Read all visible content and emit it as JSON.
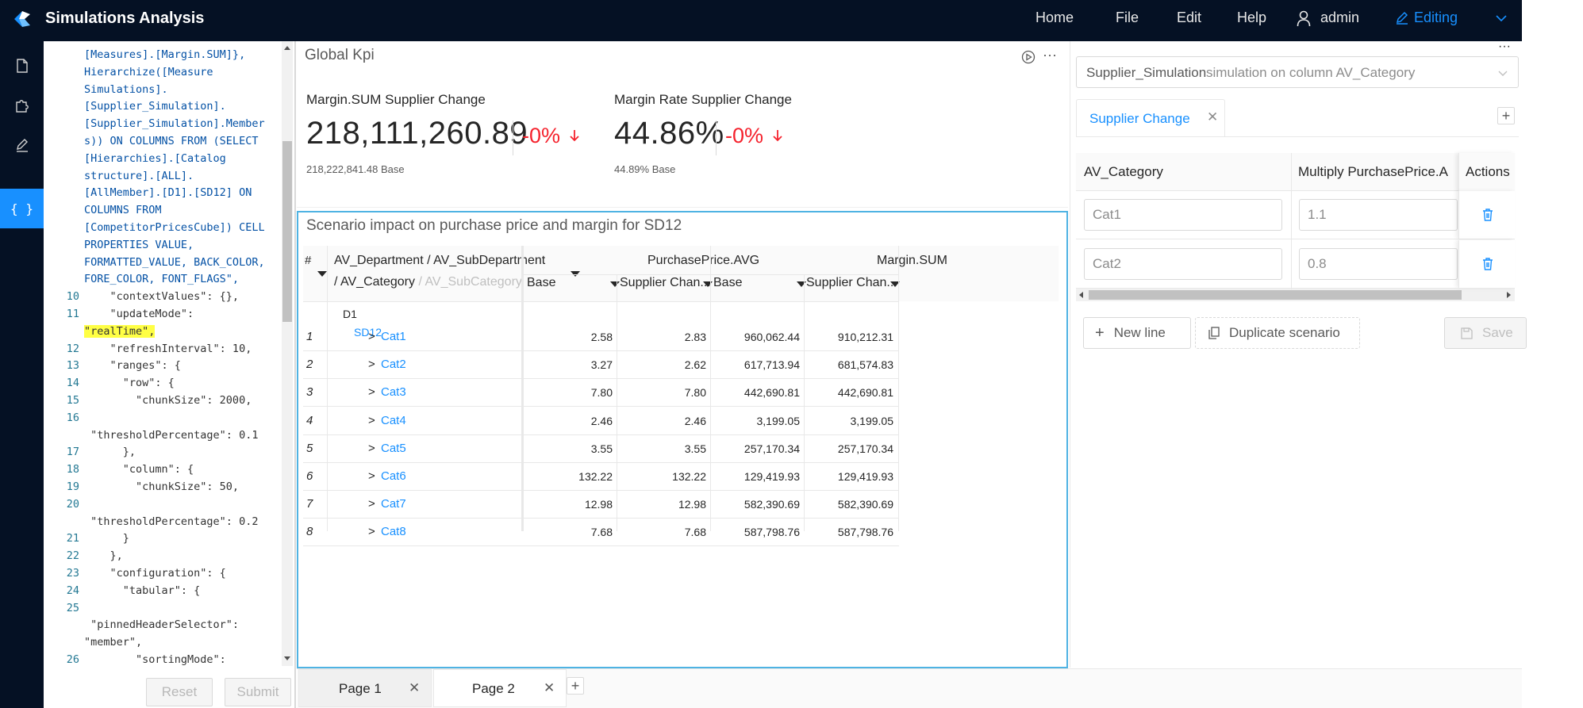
{
  "app": {
    "title": "Simulations Analysis"
  },
  "nav": {
    "home": "Home",
    "file": "File",
    "edit": "Edit",
    "help": "Help",
    "user": "admin",
    "editing": "Editing"
  },
  "iconbar": [
    "file-icon",
    "puzzle-icon",
    "pen-icon",
    "braces-icon"
  ],
  "code": {
    "lines": [
      {
        "n": "",
        "t": "[Measures].[Margin.SUM]},"
      },
      {
        "n": "",
        "t": "Hierarchize([Measure"
      },
      {
        "n": "",
        "t": "Simulations]."
      },
      {
        "n": "",
        "t": "[Supplier_Simulation]."
      },
      {
        "n": "",
        "t": "[Supplier_Simulation].Member"
      },
      {
        "n": "",
        "t": "s)) ON COLUMNS FROM (SELECT"
      },
      {
        "n": "",
        "t": "[Hierarchies].[Catalog"
      },
      {
        "n": "",
        "t": "structure].[ALL]."
      },
      {
        "n": "",
        "t": "[AllMember].[D1].[SD12] ON"
      },
      {
        "n": "",
        "t": "COLUMNS FROM"
      },
      {
        "n": "",
        "t": "[CompetitorPricesCube]) CELL"
      },
      {
        "n": "",
        "t": "PROPERTIES VALUE,"
      },
      {
        "n": "",
        "t": "FORMATTED_VALUE, BACK_COLOR,"
      },
      {
        "n": "",
        "t": "FORE_COLOR, FONT_FLAGS\","
      },
      {
        "n": "10",
        "t": "    \"contextValues\": {},"
      },
      {
        "n": "11",
        "t": "    \"updateMode\":"
      },
      {
        "n": "",
        "t": "\"realTime\","
      },
      {
        "n": "12",
        "t": "    \"refreshInterval\": 10,"
      },
      {
        "n": "13",
        "t": "    \"ranges\": {"
      },
      {
        "n": "14",
        "t": "      \"row\": {"
      },
      {
        "n": "15",
        "t": "        \"chunkSize\": 2000,"
      },
      {
        "n": "16",
        "t": ""
      },
      {
        "n": "",
        "t": " \"thresholdPercentage\": 0.1"
      },
      {
        "n": "17",
        "t": "      },"
      },
      {
        "n": "18",
        "t": "      \"column\": {"
      },
      {
        "n": "19",
        "t": "        \"chunkSize\": 50,"
      },
      {
        "n": "20",
        "t": ""
      },
      {
        "n": "",
        "t": " \"thresholdPercentage\": 0.2"
      },
      {
        "n": "21",
        "t": "      }"
      },
      {
        "n": "22",
        "t": "    },"
      },
      {
        "n": "23",
        "t": "    \"configuration\": {"
      },
      {
        "n": "24",
        "t": "      \"tabular\": {"
      },
      {
        "n": "25",
        "t": ""
      },
      {
        "n": "",
        "t": " \"pinnedHeaderSelector\":"
      },
      {
        "n": "",
        "t": "\"member\","
      },
      {
        "n": "26",
        "t": "        \"sortingMode\":"
      }
    ],
    "reset": "Reset",
    "submit": "Submit"
  },
  "kpi": {
    "title": "Global Kpi",
    "items": [
      {
        "label": "Margin.SUM  Supplier Change",
        "value": "218,111,260.89",
        "change": "-0%",
        "base": "218,222,841.48 Base"
      },
      {
        "label": "Margin Rate  Supplier Change",
        "value": "44.86%",
        "change": "-0%",
        "base": "44.89% Base"
      }
    ]
  },
  "pivot": {
    "title": "Scenario impact on purchase price and margin for SD12",
    "hash": "#",
    "dim_header_1": "AV_Department / AV_SubDepartment",
    "dim_header_2": "/ AV_Category",
    "dim_header_3": "/ AV_SubCategory",
    "measures": [
      "PurchasePrice.AVG",
      "Margin.SUM"
    ],
    "subheaders": [
      "Base",
      "Supplier Chan...",
      "Base",
      "Supplier Chan..."
    ],
    "d1": "D1",
    "sd12": "SD12",
    "rows": [
      {
        "n": "1",
        "cat": "Cat1",
        "v": [
          "2.58",
          "2.83",
          "960,062.44",
          "910,212.31"
        ]
      },
      {
        "n": "2",
        "cat": "Cat2",
        "v": [
          "3.27",
          "2.62",
          "617,713.94",
          "681,574.83"
        ]
      },
      {
        "n": "3",
        "cat": "Cat3",
        "v": [
          "7.80",
          "7.80",
          "442,690.81",
          "442,690.81"
        ]
      },
      {
        "n": "4",
        "cat": "Cat4",
        "v": [
          "2.46",
          "2.46",
          "3,199.05",
          "3,199.05"
        ]
      },
      {
        "n": "5",
        "cat": "Cat5",
        "v": [
          "3.55",
          "3.55",
          "257,170.34",
          "257,170.34"
        ]
      },
      {
        "n": "6",
        "cat": "Cat6",
        "v": [
          "132.22",
          "132.22",
          "129,419.93",
          "129,419.93"
        ]
      },
      {
        "n": "7",
        "cat": "Cat7",
        "v": [
          "12.98",
          "12.98",
          "582,390.69",
          "582,390.69"
        ]
      },
      {
        "n": "8",
        "cat": "Cat8",
        "v": [
          "7.68",
          "7.68",
          "587,798.76",
          "587,798.76"
        ]
      }
    ]
  },
  "sim": {
    "select_main": "Supplier_Simulation",
    "select_rest": " simulation on column AV_Category",
    "tab": "Supplier Change",
    "col1": "AV_Category",
    "col2": "Multiply PurchasePrice.A",
    "col3": "Actions",
    "rows": [
      {
        "cat": "Cat1",
        "mult": "1.1"
      },
      {
        "cat": "Cat2",
        "mult": "0.8"
      }
    ],
    "new_line": "New line",
    "duplicate": "Duplicate scenario",
    "save": "Save"
  },
  "pages": [
    "Page 1",
    "Page 2"
  ],
  "colors": {
    "header": "#051124",
    "accent": "#1890ff",
    "negative": "#f5222d",
    "highlight": "#ffff44"
  }
}
